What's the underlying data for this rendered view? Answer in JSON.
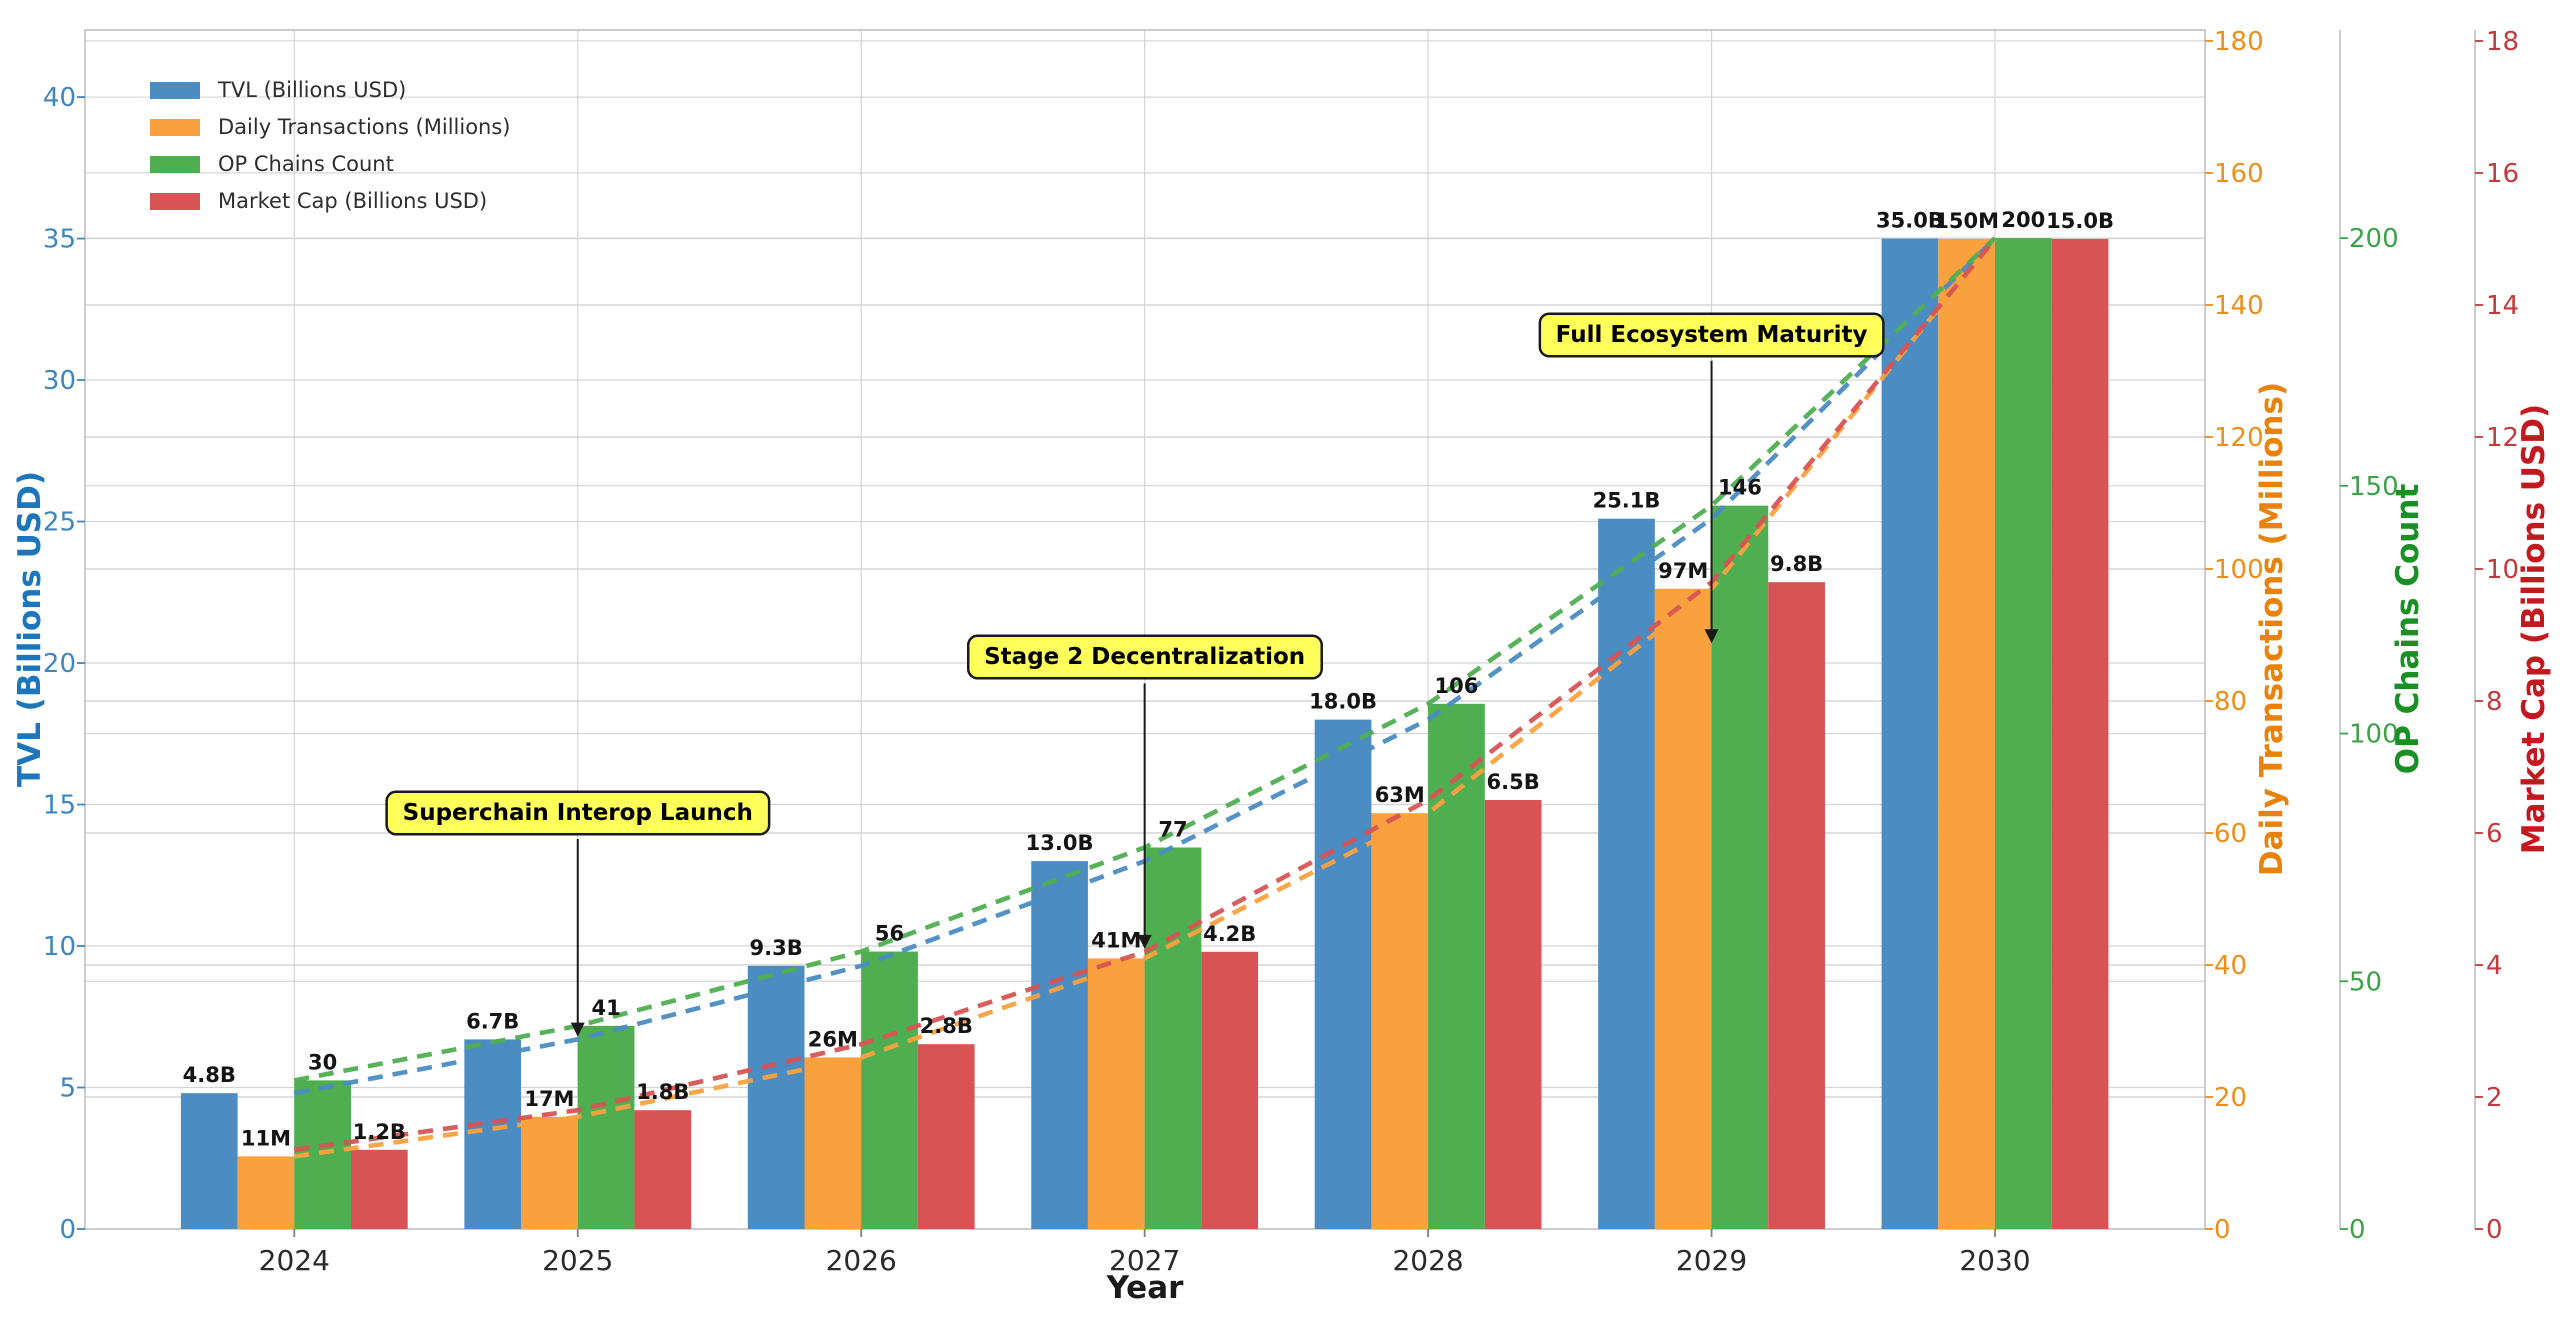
{
  "chart_data": {
    "type": "bar",
    "description": "Grouped bar chart with four independent y-axes and dashed trend lines per series",
    "title": "",
    "xlabel": "Year",
    "categories": [
      "2024",
      "2025",
      "2026",
      "2027",
      "2028",
      "2029",
      "2030"
    ],
    "series": [
      {
        "name": "TVL (Billions USD)",
        "axis": "tvl",
        "color": "#4b8cc3",
        "values": [
          4.8,
          6.7,
          9.3,
          13.0,
          18.0,
          25.1,
          35.0
        ],
        "labels": [
          "4.8B",
          "6.7B",
          "9.3B",
          "13.0B",
          "18.0B",
          "25.1B",
          "35.0B"
        ]
      },
      {
        "name": "Daily Transactions (Millions)",
        "axis": "tx",
        "color": "#f9a13f",
        "values": [
          11,
          17,
          26,
          41,
          63,
          97,
          150
        ],
        "labels": [
          "11M",
          "17M",
          "26M",
          "41M",
          "63M",
          "97M",
          "150M"
        ]
      },
      {
        "name": "OP Chains Count",
        "axis": "chains",
        "color": "#4eae50",
        "values": [
          30,
          41,
          56,
          77,
          106,
          146,
          200
        ],
        "labels": [
          "30",
          "41",
          "56",
          "77",
          "106",
          "146",
          "200"
        ]
      },
      {
        "name": "Market Cap (Billions USD)",
        "axis": "mcap",
        "color": "#d85353",
        "values": [
          1.2,
          1.8,
          2.8,
          4.2,
          6.5,
          9.8,
          15.0
        ],
        "labels": [
          "1.2B",
          "1.8B",
          "2.8B",
          "4.2B",
          "6.5B",
          "9.8B",
          "15.0B"
        ]
      }
    ],
    "axes": {
      "tvl": {
        "label": "TVL (Billions USD)",
        "side": "left",
        "ticks": [
          0,
          5,
          10,
          15,
          20,
          25,
          30,
          35,
          40
        ],
        "max": 42.37,
        "tick_color": "#3e86bd",
        "title_color": "#1c76bc"
      },
      "tx": {
        "label": "Daily Transactions (Millions)",
        "side": "right",
        "ticks": [
          0,
          20,
          40,
          60,
          80,
          100,
          120,
          140,
          160,
          180
        ],
        "max": 181.66,
        "tick_color": "#eb8e1a",
        "title_color": "#e8820a"
      },
      "chains": {
        "label": "OP Chains Count",
        "side": "right-offset-1",
        "ticks": [
          0,
          50,
          100,
          150,
          200
        ],
        "max": 242.0,
        "tick_color": "#3fa04a",
        "title_color": "#199023"
      },
      "mcap": {
        "label": "Market Cap (Billions USD)",
        "side": "right-offset-2",
        "ticks": [
          0,
          2,
          4,
          6,
          8,
          10,
          12,
          14,
          16,
          18
        ],
        "max": 18.166,
        "tick_color": "#c33a3c",
        "title_color": "#c4181f"
      }
    },
    "annotations": [
      {
        "text": "Superchain Interop Launch",
        "category": "2025",
        "arrow_tip_tvl": 6.8,
        "label_center_tvl": 14.7
      },
      {
        "text": "Stage 2 Decentralization",
        "category": "2027",
        "arrow_tip_tvl": 9.9,
        "label_center_tvl": 20.2
      },
      {
        "text": "Full Ecosystem Maturity",
        "category": "2029",
        "arrow_tip_tvl": 20.7,
        "label_center_tvl": 31.6
      }
    ],
    "legend_position": "upper-left",
    "grid": "both-x-and-y, light gray, from all four axes' ticks",
    "colors": {
      "grid": "#d4d4d4",
      "spine": "#c0c0c0",
      "bar_label": "#141414",
      "year_label": "#2a2a2a",
      "annotation_fill": "#ffff5c",
      "background": "#ffffff"
    }
  }
}
